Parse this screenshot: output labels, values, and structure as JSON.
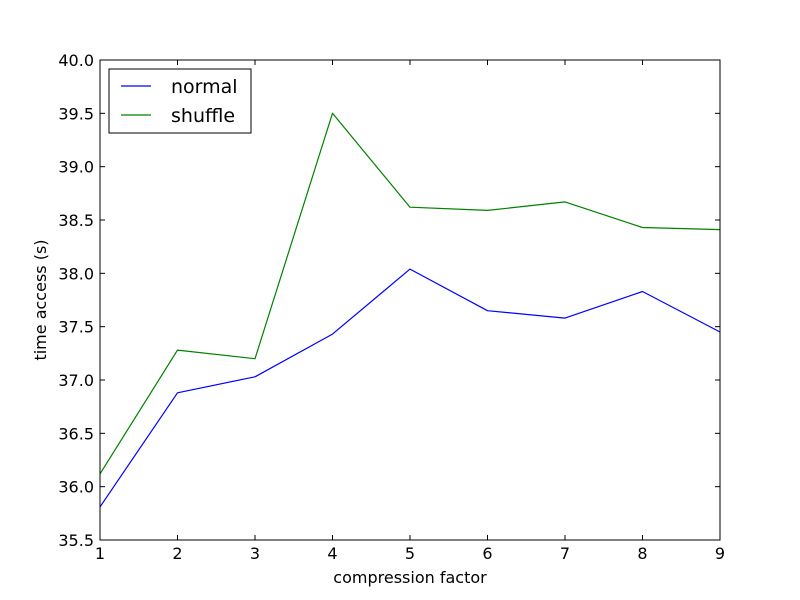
{
  "chart_data": {
    "type": "line",
    "title": "",
    "xlabel": "compression factor",
    "ylabel": "time access (s)",
    "xlim": [
      1,
      9
    ],
    "ylim": [
      35.5,
      40.0
    ],
    "x": [
      1,
      2,
      3,
      4,
      5,
      6,
      7,
      8,
      9
    ],
    "xticks": [
      "1",
      "2",
      "3",
      "4",
      "5",
      "6",
      "7",
      "8",
      "9"
    ],
    "yticks": [
      "35.5",
      "36.0",
      "36.5",
      "37.0",
      "37.5",
      "38.0",
      "38.5",
      "39.0",
      "39.5",
      "40.0"
    ],
    "grid": false,
    "legend_position": "top-left",
    "series": [
      {
        "name": "normal",
        "color": "#0000ff",
        "values": [
          35.81,
          36.88,
          37.03,
          37.43,
          38.04,
          37.65,
          37.58,
          37.83,
          37.45
        ]
      },
      {
        "name": "shuffle",
        "color": "#008000",
        "values": [
          36.12,
          37.28,
          37.2,
          39.5,
          38.62,
          38.59,
          38.67,
          38.43,
          38.41
        ]
      }
    ]
  }
}
